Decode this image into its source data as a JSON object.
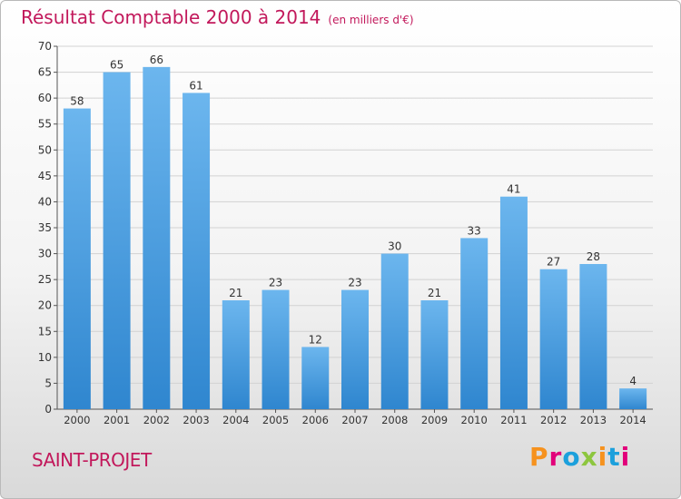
{
  "header": {
    "title": "Résultat Comptable 2000 à 2014",
    "subtitle": "(en milliers d'€)"
  },
  "footer": {
    "place": "SAINT-PROJET",
    "logo": "Proxiti"
  },
  "colors": {
    "title": "#c2185b",
    "bar_light": "#6cb6ee",
    "bar_dark": "#2f86cf",
    "logo_letters": [
      "#f6921e",
      "#e2007a",
      "#1ca0dc",
      "#8dc63f",
      "#f6921e",
      "#1ca0dc",
      "#e2007a"
    ]
  },
  "chart_data": {
    "type": "bar",
    "title": "Résultat Comptable 2000 à 2014",
    "subtitle": "(en milliers d'€)",
    "categories": [
      "2000",
      "2001",
      "2002",
      "2003",
      "2004",
      "2005",
      "2006",
      "2007",
      "2008",
      "2009",
      "2010",
      "2011",
      "2012",
      "2013",
      "2014"
    ],
    "values": [
      58,
      65,
      66,
      61,
      21,
      23,
      12,
      23,
      30,
      21,
      33,
      41,
      27,
      28,
      4
    ],
    "ylim": [
      0,
      70
    ],
    "yticks": [
      0,
      5,
      10,
      15,
      20,
      25,
      30,
      35,
      40,
      45,
      50,
      55,
      60,
      65,
      70
    ],
    "grid": true,
    "data_labels": true
  }
}
